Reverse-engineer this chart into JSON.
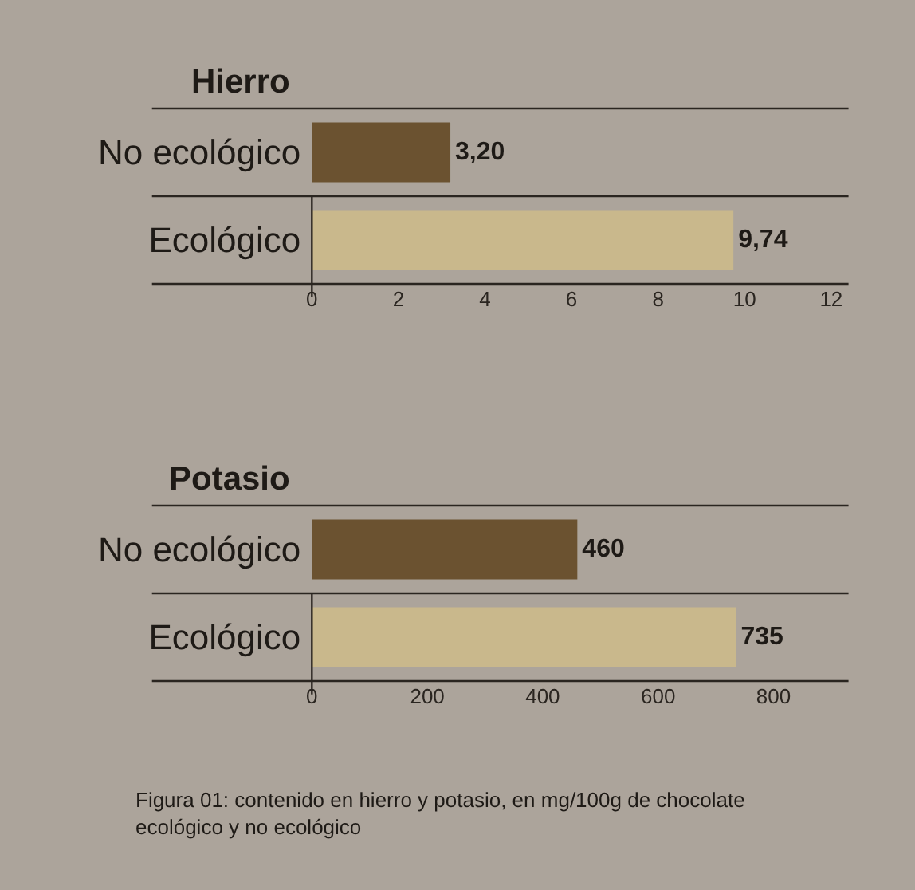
{
  "chart_data": [
    {
      "type": "bar",
      "orientation": "horizontal",
      "title": "Hierro",
      "categories": [
        "No ecológico",
        "Ecológico"
      ],
      "values": [
        3.2,
        9.74
      ],
      "colors": [
        "#6b5230",
        "#c9b88c"
      ],
      "value_labels": [
        "3,20",
        "9,74"
      ],
      "xlim": [
        0,
        12.4
      ],
      "xticks": [
        0,
        2,
        4,
        6,
        8,
        10,
        12
      ]
    },
    {
      "type": "bar",
      "orientation": "horizontal",
      "title": "Potasio",
      "categories": [
        "No ecológico",
        "Ecológico"
      ],
      "values": [
        460,
        735
      ],
      "colors": [
        "#6b5230",
        "#c9b88c"
      ],
      "data_labels": true,
      "xlim": [
        0,
        930
      ],
      "xticks": [
        0,
        200,
        400,
        600,
        800
      ],
      "annotations": [
        "Figura 01: contenido en hierro y potasio, en mg/100g de chocolate ecológico y no ecológico"
      ]
    }
  ]
}
